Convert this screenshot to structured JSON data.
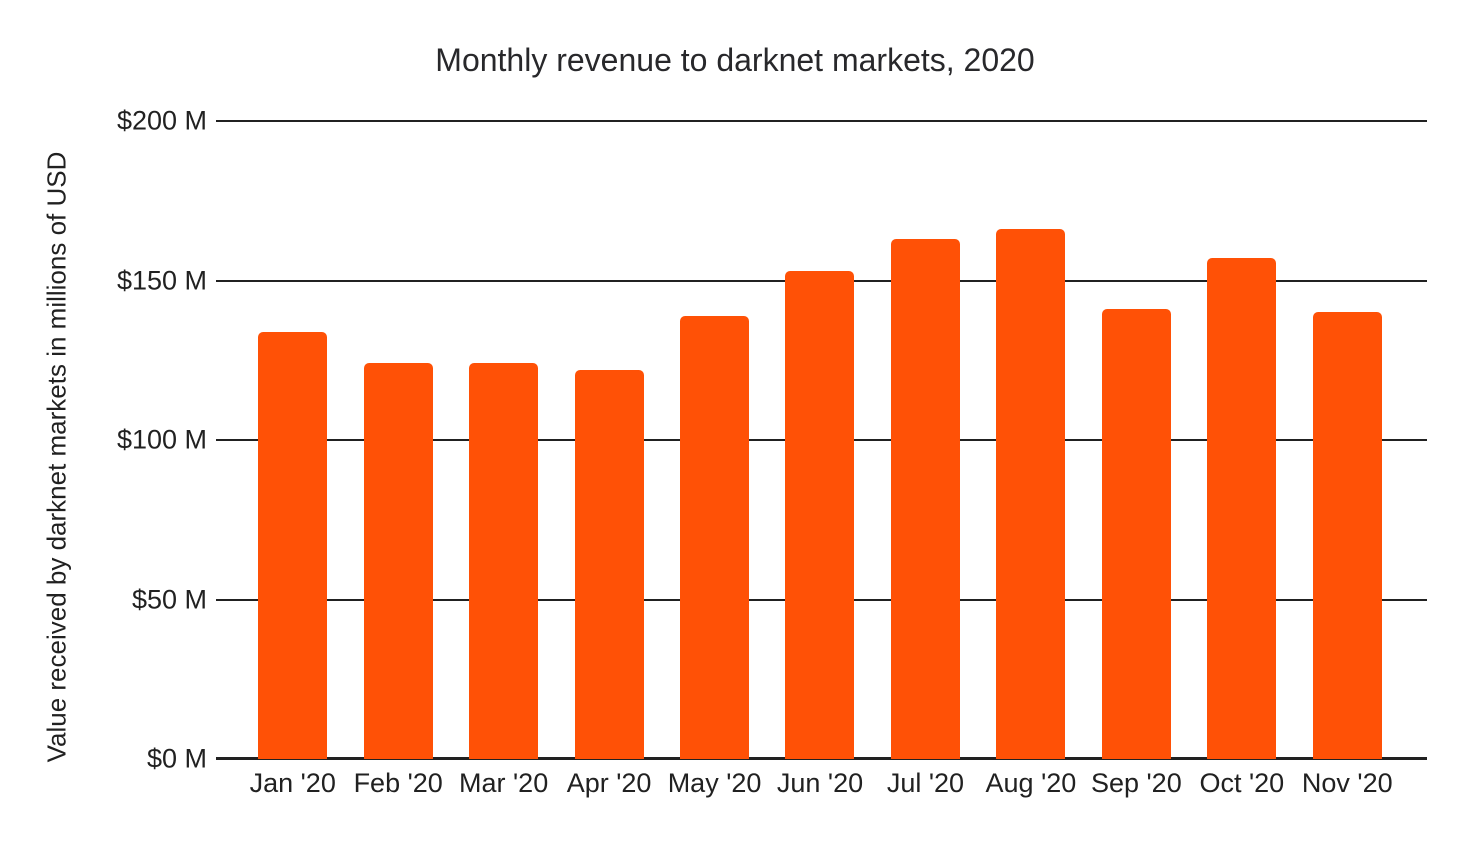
{
  "chart_data": {
    "type": "bar",
    "title": "Monthly revenue to darknet markets, 2020",
    "ylabel": "Value received by darknet markets in millions of USD",
    "xlabel": "",
    "categories": [
      "Jan '20",
      "Feb '20",
      "Mar '20",
      "Apr '20",
      "May '20",
      "Jun '20",
      "Jul '20",
      "Aug '20",
      "Sep '20",
      "Oct '20",
      "Nov '20"
    ],
    "values": [
      134,
      124,
      124,
      122,
      139,
      153,
      163,
      166,
      141,
      157,
      140
    ],
    "unit": "millions of USD",
    "ylim": [
      0,
      200
    ],
    "ytick_values": [
      200,
      150,
      100,
      50,
      0
    ],
    "ytick_labels": [
      "$200 M",
      "$150 M",
      "$100 M",
      "$50 M",
      "$0 M"
    ],
    "grid": true,
    "legend": "none",
    "bar_color": "#FF5106",
    "gridline_color": "#212121",
    "text_color": "#212121",
    "background_color": "#ffffff"
  }
}
